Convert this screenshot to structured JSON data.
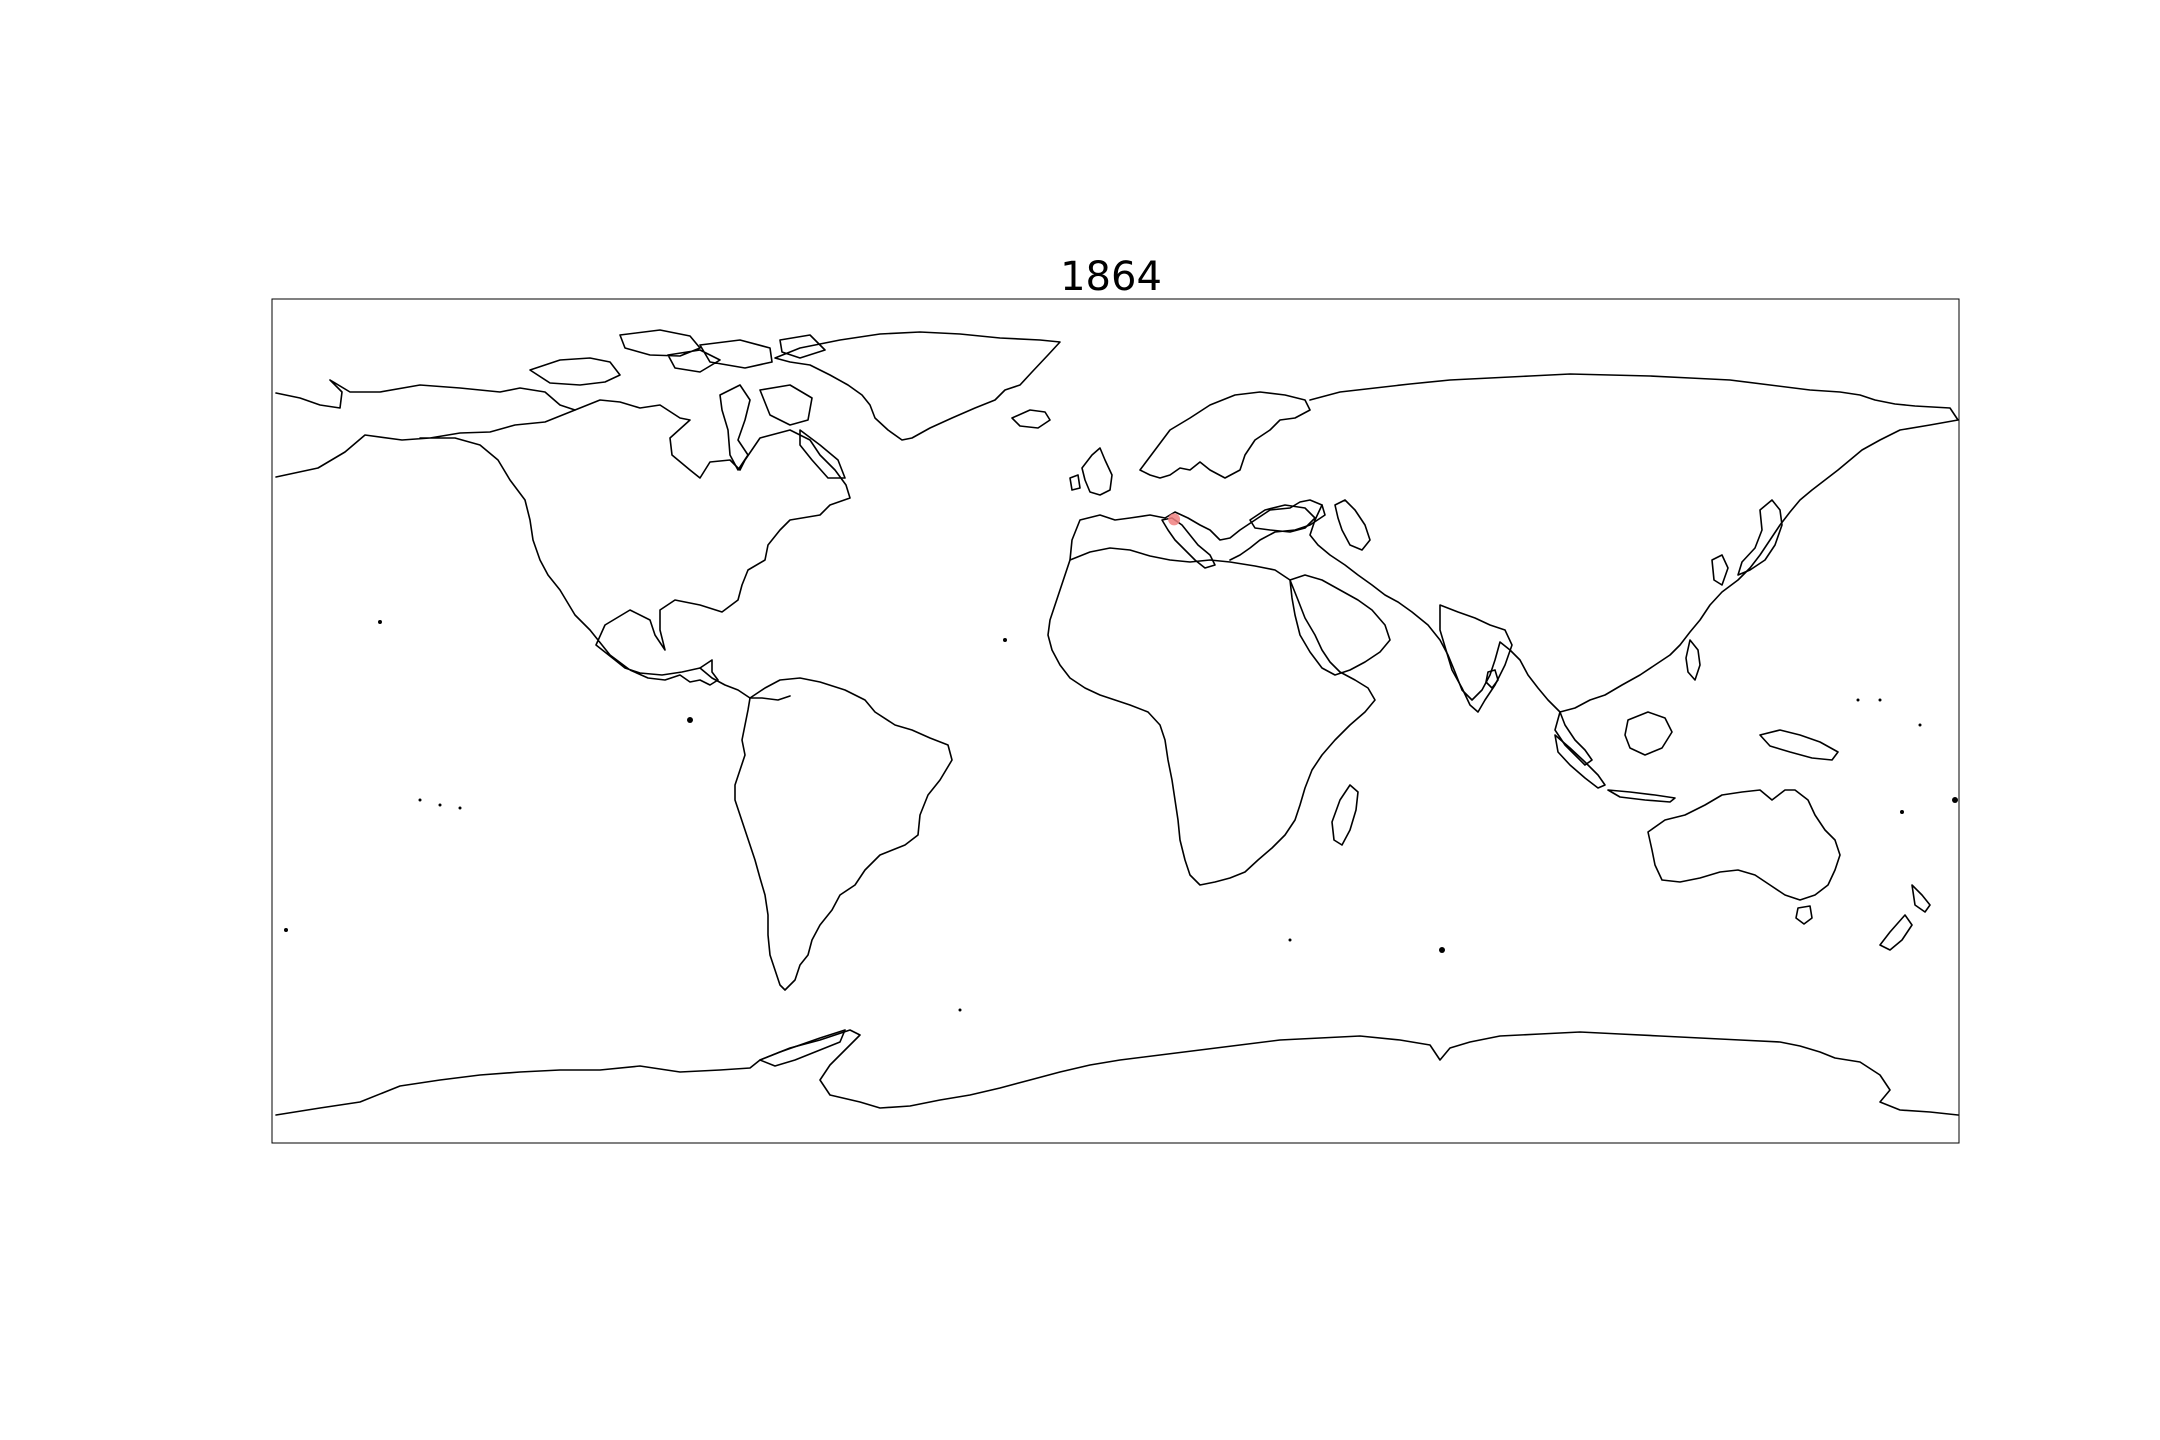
{
  "figure": {
    "title": "1864"
  },
  "map": {
    "projection": "plate-carree",
    "lon_range": [
      -180,
      180
    ],
    "lat_range": [
      -90,
      90
    ],
    "coastline_color": "#000000",
    "background": "#ffffff"
  },
  "markers": [
    {
      "label": "",
      "lon": 12.5,
      "lat": 43.0,
      "color": "#f08080",
      "opacity": 0.85
    }
  ]
}
